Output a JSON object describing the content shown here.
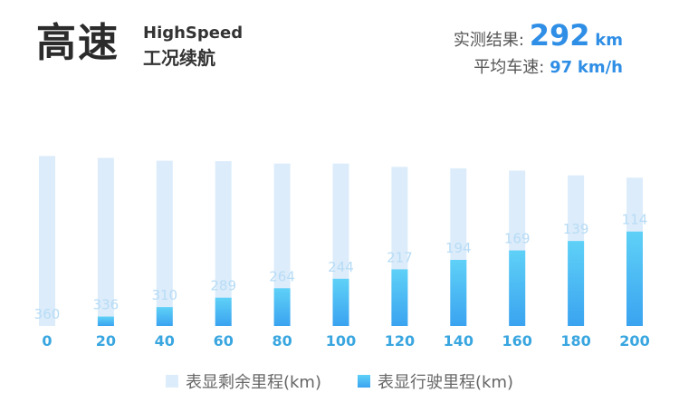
{
  "header": {
    "title_cn": "高速",
    "title_en": "HighSpeed",
    "subtitle_cn": "工况续航",
    "measured_label": "实测结果:",
    "measured_value": "292",
    "measured_unit": "km",
    "avg_speed_label": "平均车速:",
    "avg_speed_value": "97",
    "avg_speed_unit": "km/h"
  },
  "colors": {
    "remaining_bar": "#dcecfb",
    "driven_bar_top": "#5fd1f7",
    "driven_bar_bottom": "#3aa3f0",
    "accent": "#2f8ee5",
    "label_light": "#b7dcf5",
    "tick_label": "#39a6e0"
  },
  "chart_data": {
    "type": "bar",
    "categories": [
      "0",
      "20",
      "40",
      "60",
      "80",
      "100",
      "120",
      "140",
      "160",
      "180",
      "200"
    ],
    "series": [
      {
        "name": "表显剩余里程(km)",
        "values": [
          360,
          336,
          310,
          289,
          264,
          244,
          217,
          194,
          169,
          139,
          114
        ],
        "data_labels": [
          "360",
          "336",
          "310",
          "289",
          "264",
          "244",
          "217",
          "194",
          "169",
          "139",
          "114"
        ]
      },
      {
        "name": "表显行驶里程(km)",
        "values": [
          0,
          20,
          40,
          60,
          80,
          100,
          120,
          140,
          160,
          180,
          200
        ]
      }
    ],
    "legend_position": "bottom",
    "ylim": [
      0,
      360
    ]
  }
}
